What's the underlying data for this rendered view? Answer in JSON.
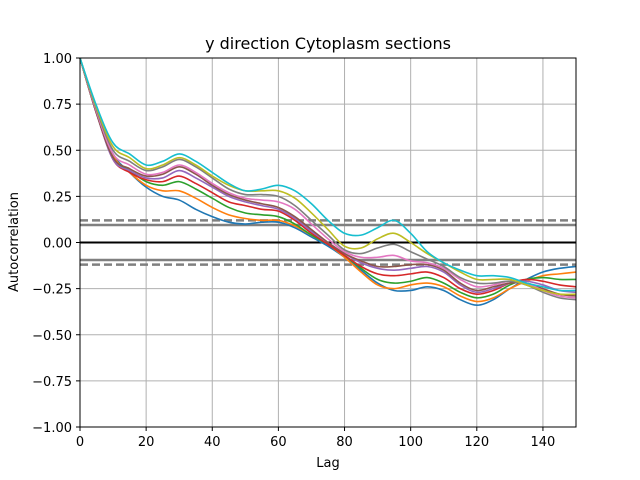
{
  "chart_data": {
    "type": "line",
    "title": "y direction Cytoplasm sections",
    "xlabel": "Lag",
    "ylabel": "Autocorrelation",
    "xlim": [
      0,
      150
    ],
    "ylim": [
      -1.0,
      1.0
    ],
    "grid": true,
    "legend": "none",
    "x_ticks": [
      0,
      20,
      40,
      60,
      80,
      100,
      120,
      140
    ],
    "y_ticks": [
      1.0,
      0.75,
      0.5,
      0.25,
      0.0,
      -0.25,
      -0.5,
      -0.75,
      -1.0
    ],
    "x_tick_labels": [
      "0",
      "20",
      "40",
      "60",
      "80",
      "100",
      "120",
      "140"
    ],
    "y_tick_labels": [
      "1.00",
      "0.75",
      "0.50",
      "0.25",
      "0.00",
      "−0.25",
      "−0.50",
      "−0.75",
      "−1.00"
    ],
    "reference_lines": [
      {
        "y": 0.0,
        "color": "#000000",
        "style": "solid"
      },
      {
        "y": 0.12,
        "color": "#808080",
        "style": "dashed"
      },
      {
        "y": -0.12,
        "color": "#808080",
        "style": "dashed"
      },
      {
        "y": 0.095,
        "color": "#808080",
        "style": "solid"
      },
      {
        "y": -0.095,
        "color": "#808080",
        "style": "solid"
      }
    ],
    "series_x": [
      0,
      5,
      10,
      15,
      20,
      25,
      30,
      35,
      40,
      45,
      50,
      55,
      60,
      65,
      70,
      75,
      80,
      85,
      90,
      95,
      100,
      105,
      110,
      115,
      120,
      125,
      130,
      135,
      140,
      145,
      150
    ],
    "series": [
      {
        "color": "#1f77b4",
        "values": [
          1.0,
          0.7,
          0.48,
          0.38,
          0.3,
          0.25,
          0.23,
          0.18,
          0.14,
          0.11,
          0.1,
          0.11,
          0.11,
          0.08,
          0.03,
          -0.02,
          -0.08,
          -0.15,
          -0.22,
          -0.26,
          -0.26,
          -0.24,
          -0.26,
          -0.31,
          -0.34,
          -0.31,
          -0.25,
          -0.2,
          -0.16,
          -0.14,
          -0.13
        ]
      },
      {
        "color": "#ff7f0e",
        "values": [
          1.0,
          0.7,
          0.47,
          0.38,
          0.31,
          0.28,
          0.28,
          0.24,
          0.19,
          0.15,
          0.13,
          0.12,
          0.12,
          0.09,
          0.04,
          -0.01,
          -0.08,
          -0.16,
          -0.23,
          -0.25,
          -0.23,
          -0.22,
          -0.24,
          -0.29,
          -0.32,
          -0.3,
          -0.25,
          -0.21,
          -0.18,
          -0.17,
          -0.16
        ]
      },
      {
        "color": "#2ca02c",
        "values": [
          1.0,
          0.7,
          0.46,
          0.39,
          0.33,
          0.31,
          0.33,
          0.29,
          0.24,
          0.19,
          0.16,
          0.15,
          0.14,
          0.1,
          0.04,
          -0.01,
          -0.07,
          -0.14,
          -0.2,
          -0.22,
          -0.21,
          -0.19,
          -0.22,
          -0.27,
          -0.3,
          -0.28,
          -0.23,
          -0.2,
          -0.19,
          -0.2,
          -0.2
        ]
      },
      {
        "color": "#d62728",
        "values": [
          1.0,
          0.7,
          0.45,
          0.38,
          0.34,
          0.33,
          0.36,
          0.32,
          0.27,
          0.22,
          0.2,
          0.18,
          0.17,
          0.12,
          0.05,
          -0.01,
          -0.07,
          -0.13,
          -0.17,
          -0.18,
          -0.17,
          -0.16,
          -0.19,
          -0.25,
          -0.28,
          -0.26,
          -0.22,
          -0.2,
          -0.21,
          -0.23,
          -0.24
        ]
      },
      {
        "color": "#9467bd",
        "values": [
          1.0,
          0.7,
          0.45,
          0.39,
          0.35,
          0.35,
          0.39,
          0.35,
          0.3,
          0.25,
          0.22,
          0.2,
          0.18,
          0.13,
          0.06,
          -0.0,
          -0.06,
          -0.11,
          -0.14,
          -0.15,
          -0.14,
          -0.13,
          -0.16,
          -0.23,
          -0.27,
          -0.25,
          -0.22,
          -0.21,
          -0.23,
          -0.26,
          -0.27
        ]
      },
      {
        "color": "#8c564b",
        "values": [
          1.0,
          0.7,
          0.46,
          0.4,
          0.36,
          0.37,
          0.41,
          0.37,
          0.31,
          0.26,
          0.23,
          0.21,
          0.19,
          0.14,
          0.07,
          0.0,
          -0.06,
          -0.1,
          -0.13,
          -0.13,
          -0.12,
          -0.12,
          -0.15,
          -0.22,
          -0.26,
          -0.24,
          -0.22,
          -0.22,
          -0.25,
          -0.28,
          -0.29
        ]
      },
      {
        "color": "#e377c2",
        "values": [
          1.0,
          0.71,
          0.48,
          0.42,
          0.37,
          0.38,
          0.42,
          0.38,
          0.32,
          0.27,
          0.24,
          0.23,
          0.22,
          0.18,
          0.1,
          0.02,
          -0.05,
          -0.08,
          -0.08,
          -0.07,
          -0.1,
          -0.11,
          -0.14,
          -0.2,
          -0.24,
          -0.23,
          -0.21,
          -0.22,
          -0.26,
          -0.29,
          -0.3
        ]
      },
      {
        "color": "#7f7f7f",
        "values": [
          1.0,
          0.72,
          0.5,
          0.44,
          0.39,
          0.41,
          0.45,
          0.41,
          0.35,
          0.29,
          0.26,
          0.26,
          0.25,
          0.2,
          0.12,
          0.04,
          -0.04,
          -0.06,
          -0.03,
          -0.01,
          -0.05,
          -0.09,
          -0.13,
          -0.19,
          -0.22,
          -0.22,
          -0.21,
          -0.23,
          -0.27,
          -0.3,
          -0.31
        ]
      },
      {
        "color": "#bcbd22",
        "values": [
          1.0,
          0.73,
          0.52,
          0.46,
          0.4,
          0.42,
          0.46,
          0.42,
          0.36,
          0.31,
          0.28,
          0.28,
          0.28,
          0.24,
          0.16,
          0.07,
          -0.02,
          -0.03,
          0.02,
          0.05,
          0.0,
          -0.06,
          -0.11,
          -0.16,
          -0.2,
          -0.2,
          -0.2,
          -0.23,
          -0.26,
          -0.28,
          -0.28
        ]
      },
      {
        "color": "#17becf",
        "values": [
          1.0,
          0.74,
          0.54,
          0.48,
          0.42,
          0.44,
          0.48,
          0.44,
          0.38,
          0.32,
          0.28,
          0.29,
          0.31,
          0.28,
          0.21,
          0.12,
          0.05,
          0.04,
          0.08,
          0.12,
          0.05,
          -0.05,
          -0.11,
          -0.15,
          -0.18,
          -0.18,
          -0.19,
          -0.22,
          -0.24,
          -0.26,
          -0.26
        ]
      }
    ]
  }
}
